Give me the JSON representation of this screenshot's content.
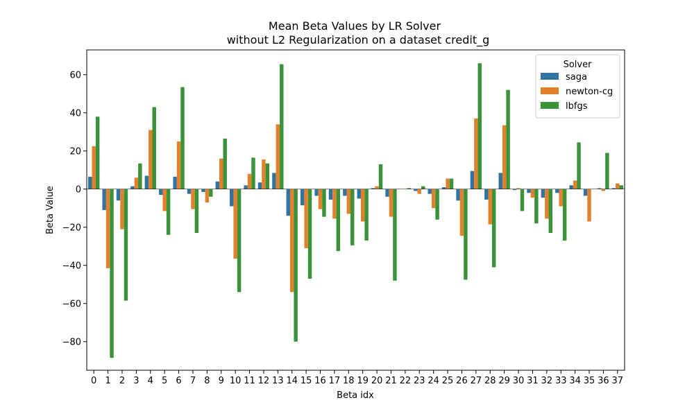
{
  "chart_data": {
    "type": "bar",
    "title": "Mean Beta Values by LR Solver",
    "subtitle": "without L2 Regularization on a dataset credit_g",
    "xlabel": "Beta idx",
    "ylabel": "Beta Value",
    "ylim": [
      -95,
      73
    ],
    "yticks": [
      -80,
      -60,
      -40,
      -20,
      0,
      20,
      40,
      60
    ],
    "grid": false,
    "legend": {
      "title": "Solver",
      "placement": "top-right"
    },
    "categories": [
      "0",
      "1",
      "2",
      "3",
      "4",
      "5",
      "6",
      "7",
      "8",
      "9",
      "10",
      "11",
      "12",
      "13",
      "14",
      "15",
      "16",
      "17",
      "18",
      "19",
      "20",
      "21",
      "22",
      "23",
      "24",
      "25",
      "26",
      "27",
      "28",
      "29",
      "30",
      "31",
      "32",
      "33",
      "34",
      "35",
      "36",
      "37"
    ],
    "series": [
      {
        "name": "saga",
        "color": "#3274a1",
        "values": [
          6.5,
          -11,
          -6,
          1.5,
          7,
          -3,
          6.5,
          -2.5,
          -1.5,
          4,
          -9,
          2,
          3.5,
          8.5,
          -14,
          -8.5,
          -3.5,
          -5.5,
          -3.5,
          -5,
          0.5,
          -4,
          0,
          -1,
          -2.5,
          1,
          -6,
          9.5,
          -5.5,
          8.5,
          -0.5,
          -2,
          -4.5,
          -2,
          2,
          -3.5,
          0.5,
          0.5
        ]
      },
      {
        "name": "newton-cg",
        "color": "#e1812c",
        "values": [
          22.5,
          -41.5,
          -21,
          6,
          31,
          -11.5,
          25,
          -10.5,
          -7,
          16,
          -36.5,
          8,
          15.5,
          34,
          -54,
          -31,
          -10.5,
          -15.5,
          -13,
          -17,
          1.5,
          -14.5,
          0,
          -2.5,
          -10,
          5.5,
          -24.5,
          37,
          -18.5,
          33.5,
          0.5,
          -4.5,
          -15.5,
          -9,
          4.5,
          -17,
          -1,
          3
        ]
      },
      {
        "name": "lbfgs",
        "color": "#3a923a",
        "values": [
          38,
          -88.5,
          -58.5,
          13.5,
          43,
          -24,
          53.5,
          -23,
          -4,
          26.5,
          -54,
          16.5,
          13.5,
          65.5,
          -80,
          -47,
          -14.5,
          -32.5,
          -29.5,
          -27,
          13,
          -48,
          0.5,
          1.5,
          -16,
          5.5,
          -47.5,
          66,
          -41,
          52,
          -11.5,
          -18,
          -23,
          -27,
          24.5,
          0,
          19,
          2
        ]
      }
    ]
  }
}
